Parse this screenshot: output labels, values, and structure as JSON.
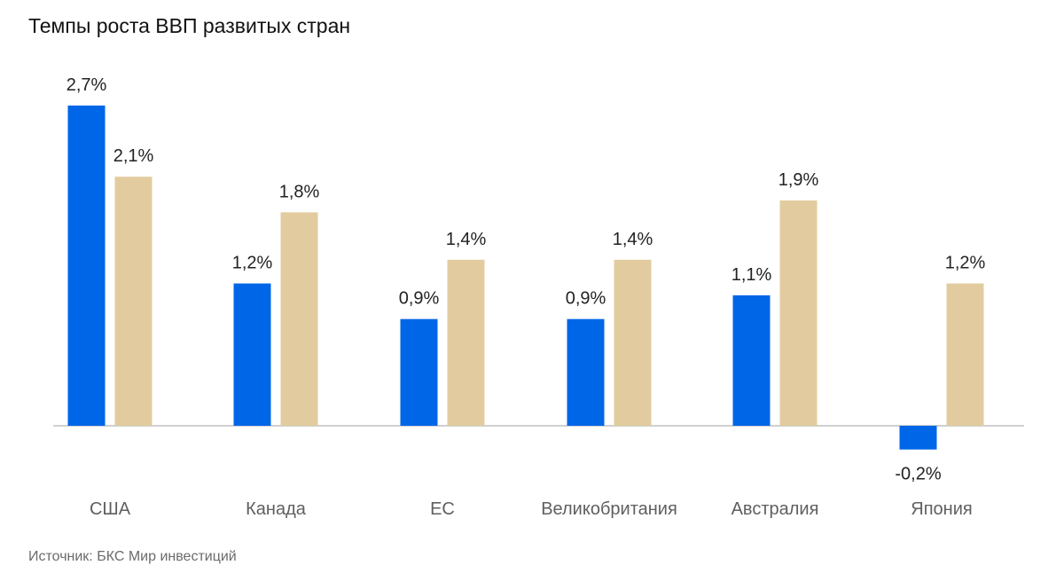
{
  "chart_title": "Темпы роста ВВП развитых стран",
  "source": "Источник: БКС Мир инвестиций",
  "colors": {
    "series_1": "#0066e8",
    "series_2": "#e2cc9f",
    "baseline": "#d0d0d0",
    "text": "#222222",
    "muted_text": "#5f5f5f"
  },
  "chart_data": {
    "type": "bar",
    "title": "Темпы роста ВВП развитых стран",
    "categories": [
      "США",
      "Канада",
      "ЕС",
      "Великобритания",
      "Австралия",
      "Япония"
    ],
    "series": [
      {
        "values": [
          2.7,
          1.2,
          0.9,
          0.9,
          1.1,
          -0.2
        ],
        "labels": [
          "2,7%",
          "1,2%",
          "0,9%",
          "0,9%",
          "1,1%",
          "-0,2%"
        ]
      },
      {
        "values": [
          2.1,
          1.8,
          1.4,
          1.4,
          1.9,
          1.2
        ],
        "labels": [
          "2,1%",
          "1,8%",
          "1,4%",
          "1,4%",
          "1,9%",
          "1,2%"
        ]
      }
    ],
    "xlabel": "",
    "ylabel": "",
    "ylim": [
      -0.2,
      2.7
    ],
    "grid": false,
    "legend": "none"
  }
}
